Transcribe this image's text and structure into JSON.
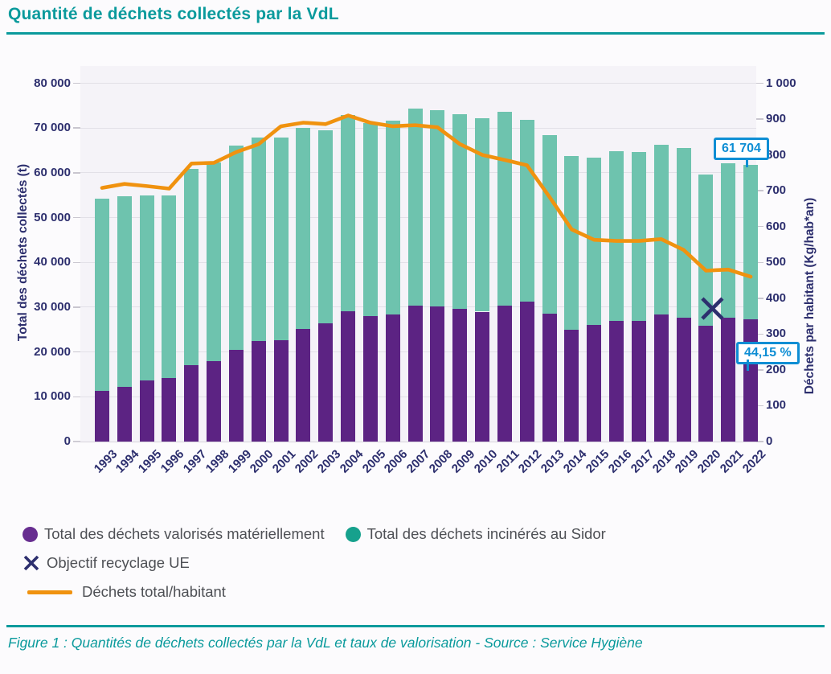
{
  "title": "Quantité de déchets collectés par la VdL",
  "caption": "Figure 1 : Quantités de déchets collectés par la VdL et taux de valorisation - Source : Service Hygiène",
  "colors": {
    "accent_teal": "#0a9a9c",
    "bar_purple": "#5c2383",
    "bar_teal": "#6ec3ae",
    "line_orange": "#f0920f",
    "axis_navy": "#2d2f6e",
    "annotation_blue": "#0e8ed4",
    "legend_text": "#4e5055",
    "plot_background": "#f5f3f8"
  },
  "legend_marker_colors": {
    "valorise_dot": "#672d90",
    "incinere_dot": "#16a18d",
    "objectif_x": "#2d2f6e",
    "line_swatch": "#f0920f"
  },
  "chart_data": {
    "type": "bar",
    "subtype": "stacked-bars-with-line-dual-axis",
    "categories": [
      "1993",
      "1994",
      "1995",
      "1996",
      "1997",
      "1998",
      "1999",
      "2000",
      "2001",
      "2002",
      "2003",
      "2004",
      "2005",
      "2006",
      "2007",
      "2008",
      "2009",
      "2010",
      "2011",
      "2012",
      "2013",
      "2014",
      "2015",
      "2016",
      "2017",
      "2018",
      "2019",
      "2020",
      "2021",
      "2022"
    ],
    "series": [
      {
        "name": "Total des déchets valorisés matériellement",
        "type": "bar-stack",
        "axis": "left",
        "color": "#5c2383",
        "values": [
          11300,
          12300,
          13700,
          14100,
          17000,
          18000,
          20400,
          22500,
          22600,
          25200,
          26400,
          29100,
          28100,
          28400,
          30300,
          30100,
          29600,
          29000,
          30300,
          31300,
          28600,
          24900,
          26000,
          27000,
          27000,
          28400,
          27700,
          25900,
          27700,
          27242
        ]
      },
      {
        "name": "Total des déchets incinérés au Sidor",
        "type": "bar-stack",
        "axis": "left",
        "color": "#6ec3ae",
        "values": [
          43000,
          42500,
          41300,
          40900,
          43900,
          44300,
          45700,
          45400,
          45200,
          44800,
          43100,
          43800,
          43100,
          43300,
          44100,
          43900,
          43400,
          43100,
          43400,
          40500,
          39900,
          38800,
          37300,
          37900,
          37600,
          37900,
          37800,
          33800,
          34400,
          34462
        ]
      },
      {
        "name": "Déchets total/habitant",
        "type": "line",
        "axis": "right",
        "color": "#f0920f",
        "values": [
          708,
          719,
          713,
          706,
          776,
          778,
          808,
          830,
          880,
          890,
          886,
          910,
          890,
          880,
          883,
          877,
          830,
          800,
          786,
          771,
          683,
          592,
          563,
          560,
          560,
          565,
          535,
          477,
          480,
          460
        ]
      },
      {
        "name": "Objectif recyclage UE",
        "type": "point-x-marker",
        "axis": "left",
        "color": "#2d2f6e",
        "points": [
          {
            "year": "2020",
            "value_t": 29700
          }
        ]
      }
    ],
    "stack_totals": [
      54300,
      54800,
      55000,
      55000,
      60900,
      62300,
      66100,
      67900,
      67800,
      70000,
      69500,
      72900,
      71200,
      71700,
      74400,
      74000,
      73000,
      72100,
      73700,
      71800,
      68500,
      63700,
      63300,
      64900,
      64600,
      66300,
      65500,
      59700,
      62100,
      61704
    ],
    "left_axis": {
      "label": "Total des déchets collectés (t)",
      "min": 0,
      "max": 80000,
      "tick_step": 10000,
      "tick_labels": [
        "0",
        "10 000",
        "20 000",
        "30 000",
        "40 000",
        "50 000",
        "60 000",
        "70 000",
        "80 000"
      ]
    },
    "right_axis": {
      "label": "Déchets par habitant (Kg/hab*an)",
      "min": 0,
      "max": 1000,
      "tick_step": 100,
      "tick_labels": [
        "0",
        "100",
        "200",
        "300",
        "400",
        "500",
        "600",
        "700",
        "800",
        "900",
        "1 000"
      ]
    },
    "grid": "horizontal-only",
    "legend_position": "below",
    "annotations": [
      {
        "text": "61 704",
        "year": "2022"
      },
      {
        "text": "44,15 %",
        "year": "2022"
      }
    ]
  }
}
